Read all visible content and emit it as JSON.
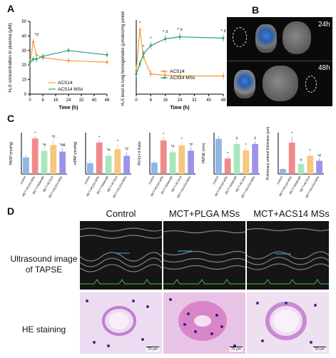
{
  "panels": {
    "a": "A",
    "b": "B",
    "c": "C",
    "d": "D"
  },
  "colors": {
    "acs14": "#f39c3a",
    "mss": "#2e9e7a"
  },
  "legend": {
    "acs14": "ACS14",
    "mss": "ACS14 MSs"
  },
  "chart_a1": {
    "type": "line",
    "ylabel": "H₂S concentration in plasma (μM)",
    "xlabel": "Time (h)",
    "xticks": [
      "0",
      "8",
      "16",
      "24",
      "32",
      "40",
      "48"
    ],
    "yticks": [
      "0",
      "10",
      "20",
      "30",
      "40",
      "50"
    ],
    "ylim": [
      0,
      50
    ],
    "annotation": "*#",
    "series": [
      {
        "name": "ACS14",
        "x": [
          0,
          2,
          4,
          8,
          24,
          48
        ],
        "y": [
          21,
          36,
          27,
          25,
          23,
          22
        ]
      },
      {
        "name": "ACS14 MSs",
        "x": [
          0,
          2,
          4,
          8,
          24,
          48
        ],
        "y": [
          22,
          24,
          24,
          26,
          30,
          27
        ]
      }
    ]
  },
  "chart_a2": {
    "type": "line",
    "ylabel": "H₂S level in lung homogenates (μmoles/mg protein)",
    "xlabel": "Time (h)",
    "xticks": [
      "0",
      "8",
      "16",
      "24",
      "32",
      "40",
      "48"
    ],
    "series": [
      {
        "name": "ACS14",
        "x": [
          0,
          2,
          4,
          8,
          16,
          24,
          48
        ],
        "y": [
          0.35,
          0.95,
          0.55,
          0.3,
          0.28,
          0.27,
          0.27
        ]
      },
      {
        "name": "ACS14 MSs",
        "x": [
          0,
          2,
          4,
          8,
          16,
          24,
          48
        ],
        "y": [
          0.3,
          0.45,
          0.6,
          0.72,
          0.82,
          0.85,
          0.83
        ]
      }
    ],
    "annotations": [
      "*",
      "*",
      "*",
      "*",
      "* #",
      "* #",
      "* #"
    ]
  },
  "panel_b": {
    "labels": [
      "24h",
      "48h"
    ]
  },
  "panel_c": {
    "categories": [
      "control",
      "MCT+PLGA MSs",
      "MCT+Sildenafil",
      "MCT+ACS14",
      "MCT+ACS14 MSs"
    ],
    "bar_colors": [
      "#8fb7e8",
      "#f08a8a",
      "#a8e6c0",
      "#f6c77d",
      "#9a95e8"
    ],
    "charts": [
      {
        "ylabel": "PASP (mmHg)",
        "values": [
          20,
          43,
          28,
          35,
          27
        ],
        "errors": [
          3,
          3,
          4,
          7,
          5
        ],
        "ymax": 50,
        "labels": [
          "",
          "*",
          "*#",
          "*#",
          "*#&"
        ]
      },
      {
        "ylabel": "mPAP (mmHg)",
        "values": [
          13,
          38,
          22,
          30,
          22
        ],
        "errors": [
          3,
          3,
          4,
          6,
          5
        ],
        "ymax": 50,
        "labels": [
          "",
          "*",
          "*#",
          "*",
          "*#"
        ]
      },
      {
        "ylabel": "RV/LV+S Ratio",
        "values": [
          0.22,
          0.65,
          0.42,
          0.55,
          0.45
        ],
        "errors": [
          0.04,
          0.07,
          0.06,
          0.08,
          0.07
        ],
        "ymax": 0.8,
        "labels": [
          "",
          "*",
          "*#",
          "*",
          "*#"
        ]
      },
      {
        "ylabel": "TAPSE (mm)",
        "values": [
          1.7,
          0.75,
          1.45,
          1.15,
          1.45
        ],
        "errors": [
          0.15,
          0.12,
          0.15,
          0.12,
          0.15
        ],
        "ymax": 2.0,
        "labels": [
          "",
          "*",
          "#",
          "*",
          "#"
        ]
      },
      {
        "ylabel": "Pulmonary arterial thickness (μm)",
        "values": [
          3,
          19,
          6,
          11,
          8
        ],
        "errors": [
          0.5,
          4,
          1,
          1.5,
          1.5
        ],
        "ymax": 25,
        "labels": [
          "",
          "*",
          "#",
          "*",
          "*#"
        ]
      }
    ]
  },
  "panel_d": {
    "columns": [
      "Control",
      "MCT+PLGA MSs",
      "MCT+ACS14 MSs"
    ],
    "row1_label": "Ultrasound image of TAPSE",
    "row2_label": "HE staining",
    "scalebar": "20 μm"
  }
}
